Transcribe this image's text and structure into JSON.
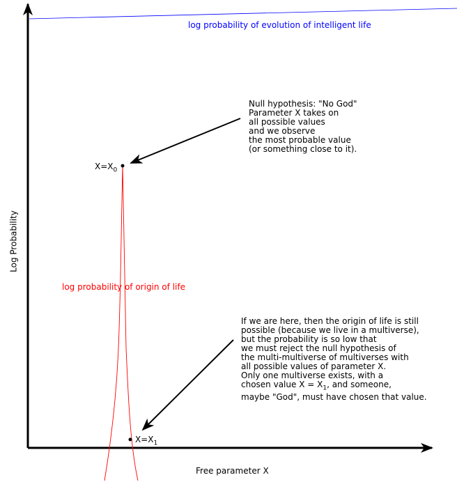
{
  "labels": {
    "evolution": "log probability of evolution of intelligent life",
    "origin": "log probability of origin of life",
    "y_axis": "Log Probability",
    "x_axis": "Free parameter X",
    "x0": "X=X",
    "x0_sub": "0",
    "x1": "X=X",
    "x1_sub": "1"
  },
  "annotations": {
    "null_hypothesis": "Null hypothesis: \"No God\"\nParameter X takes on\nall possible values\nand we observe\nthe most probable value\n(or something close to it).",
    "multiverse": "If we are here, then the origin of life is still\npossible (because we live in a multiverse),\nbut the probability is so low that\nwe must reject the null hypothesis of\nthe multi-multiverse of multiverses with\nall possible values of parameter X.\nOnly one multiverse exists, with a\nchosen value X = X",
    "multiverse_sub": "1",
    "multiverse_end": ", and someone,\nmaybe \"God\", must have chosen that value."
  },
  "colors": {
    "evolution": "#0000ff",
    "origin": "#ff0000",
    "axes": "#000000"
  }
}
